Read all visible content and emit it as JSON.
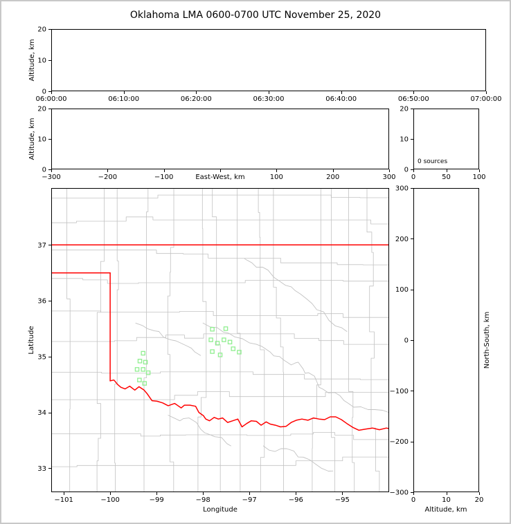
{
  "title": "Oklahoma LMA 0600-0700 UTC November 25, 2020",
  "colors": {
    "axis": "#000000",
    "background": "#ffffff",
    "figure_border": "#c8c8c8",
    "state_boundary": "#ff0000",
    "county_line": "#c2c2c2",
    "station_marker": "#90ee90"
  },
  "chart_data": [
    {
      "id": "time_height",
      "type": "scatter",
      "xlabel": "",
      "ylabel": "Altitude, km",
      "xlim": [
        0,
        60
      ],
      "ylim": [
        0,
        20
      ],
      "xticks": [
        0,
        10,
        20,
        30,
        40,
        50,
        60
      ],
      "xtick_labels": [
        "06:00:00",
        "06:10:00",
        "06:20:00",
        "06:30:00",
        "06:40:00",
        "06:50:00",
        "07:00:00"
      ],
      "yticks": [
        0,
        10,
        20
      ],
      "ytick_labels": [
        "0",
        "10",
        "20"
      ],
      "points": []
    },
    {
      "id": "ew_height",
      "type": "scatter",
      "xlabel": "East-West, km",
      "ylabel": "Altitude, km",
      "xlim": [
        -300,
        300
      ],
      "ylim": [
        0,
        20
      ],
      "xticks": [
        -300,
        -200,
        -100,
        0,
        100,
        200,
        300
      ],
      "xtick_labels": [
        "−300",
        "−200",
        "−100",
        "",
        "100",
        "200",
        "300"
      ],
      "yticks": [
        0,
        10,
        20
      ],
      "ytick_labels": [
        "0",
        "10",
        "20"
      ],
      "points": []
    },
    {
      "id": "source_histogram",
      "type": "bar",
      "xlabel": "",
      "ylabel": "",
      "annotation": "0 sources",
      "xlim": [
        0,
        100
      ],
      "ylim": [
        0,
        20
      ],
      "xticks": [
        0,
        50,
        100
      ],
      "xtick_labels": [
        "0",
        "50",
        "100"
      ],
      "yticks": [
        0,
        10,
        20
      ],
      "ytick_labels": [
        "0",
        "10",
        "20"
      ],
      "values": []
    },
    {
      "id": "plan_view",
      "type": "map-scatter",
      "xlabel": "Longitude",
      "ylabel": "Latitude",
      "xlim": [
        -101.27,
        -93.99
      ],
      "ylim": [
        32.57,
        38.02
      ],
      "xticks": [
        -101,
        -100,
        -99,
        -98,
        -97,
        -96,
        -95
      ],
      "xtick_labels": [
        "−101",
        "−100",
        "−99",
        "−98",
        "−97",
        "−96",
        "−95"
      ],
      "yticks": [
        33,
        34,
        35,
        36,
        37
      ],
      "ytick_labels": [
        "33",
        "34",
        "35",
        "36",
        "37"
      ],
      "points": [],
      "stations": [
        [
          -99.29,
          35.06
        ],
        [
          -99.36,
          34.92
        ],
        [
          -99.24,
          34.9
        ],
        [
          -99.42,
          34.77
        ],
        [
          -99.29,
          34.77
        ],
        [
          -99.18,
          34.71
        ],
        [
          -99.37,
          34.58
        ],
        [
          -99.26,
          34.52
        ],
        [
          -97.8,
          35.49
        ],
        [
          -97.51,
          35.5
        ],
        [
          -97.83,
          35.3
        ],
        [
          -97.69,
          35.24
        ],
        [
          -97.55,
          35.3
        ],
        [
          -97.42,
          35.26
        ],
        [
          -97.8,
          35.09
        ],
        [
          -97.63,
          35.03
        ],
        [
          -97.35,
          35.14
        ],
        [
          -97.22,
          35.08
        ]
      ],
      "state_border": [
        [
          [
            -101.27,
            37.0
          ],
          [
            -93.99,
            37.0
          ]
        ],
        [
          [
            -101.27,
            36.5
          ],
          [
            -100.0,
            36.5
          ]
        ],
        [
          [
            -100.0,
            36.5
          ],
          [
            -100.0,
            34.565
          ]
        ],
        [
          [
            -100.0,
            34.565
          ],
          [
            -99.92,
            34.58
          ],
          [
            -99.84,
            34.5
          ],
          [
            -99.77,
            34.45
          ],
          [
            -99.68,
            34.42
          ],
          [
            -99.58,
            34.47
          ],
          [
            -99.47,
            34.4
          ],
          [
            -99.38,
            34.46
          ],
          [
            -99.27,
            34.4
          ],
          [
            -99.2,
            34.33
          ],
          [
            -99.1,
            34.21
          ],
          [
            -98.99,
            34.2
          ],
          [
            -98.87,
            34.17
          ],
          [
            -98.75,
            34.12
          ],
          [
            -98.61,
            34.16
          ],
          [
            -98.47,
            34.08
          ],
          [
            -98.4,
            34.13
          ],
          [
            -98.28,
            34.13
          ],
          [
            -98.16,
            34.11
          ],
          [
            -98.09,
            34.0
          ],
          [
            -97.99,
            33.94
          ],
          [
            -97.94,
            33.88
          ],
          [
            -97.86,
            33.85
          ],
          [
            -97.76,
            33.91
          ],
          [
            -97.67,
            33.88
          ],
          [
            -97.58,
            33.9
          ],
          [
            -97.47,
            33.82
          ],
          [
            -97.36,
            33.85
          ],
          [
            -97.25,
            33.88
          ],
          [
            -97.16,
            33.74
          ],
          [
            -97.06,
            33.8
          ],
          [
            -96.96,
            33.85
          ],
          [
            -96.85,
            33.84
          ],
          [
            -96.75,
            33.77
          ],
          [
            -96.64,
            33.83
          ],
          [
            -96.55,
            33.79
          ],
          [
            -96.44,
            33.77
          ],
          [
            -96.33,
            33.74
          ],
          [
            -96.21,
            33.75
          ],
          [
            -96.1,
            33.82
          ],
          [
            -95.99,
            33.86
          ],
          [
            -95.87,
            33.88
          ],
          [
            -95.74,
            33.86
          ],
          [
            -95.62,
            33.9
          ],
          [
            -95.5,
            33.88
          ],
          [
            -95.38,
            33.87
          ],
          [
            -95.26,
            33.92
          ],
          [
            -95.14,
            33.92
          ],
          [
            -95.02,
            33.87
          ],
          [
            -94.9,
            33.8
          ],
          [
            -94.77,
            33.73
          ],
          [
            -94.64,
            33.68
          ],
          [
            -94.5,
            33.7
          ],
          [
            -94.35,
            33.72
          ],
          [
            -94.2,
            33.69
          ],
          [
            -94.05,
            33.72
          ],
          [
            -93.99,
            33.71
          ]
        ]
      ],
      "river_lines": [
        [
          [
            -96.35,
            35.0
          ],
          [
            -96.1,
            34.85
          ],
          [
            -95.95,
            34.9
          ],
          [
            -95.8,
            34.7
          ],
          [
            -95.6,
            34.65
          ],
          [
            -95.5,
            34.45
          ],
          [
            -95.3,
            34.35
          ],
          [
            -95.05,
            34.3
          ],
          [
            -94.85,
            34.15
          ],
          [
            -94.6,
            34.1
          ],
          [
            -94.3,
            34.05
          ],
          [
            -94.0,
            34.0
          ]
        ],
        [
          [
            -98.75,
            33.95
          ],
          [
            -98.5,
            33.85
          ],
          [
            -98.3,
            33.9
          ],
          [
            -98.05,
            33.7
          ],
          [
            -97.85,
            33.6
          ],
          [
            -97.6,
            33.55
          ],
          [
            -97.4,
            33.4
          ]
        ],
        [
          [
            -96.7,
            33.4
          ],
          [
            -96.45,
            33.3
          ],
          [
            -96.2,
            33.35
          ],
          [
            -95.95,
            33.2
          ],
          [
            -95.7,
            33.15
          ],
          [
            -95.45,
            33.0
          ],
          [
            -95.2,
            32.95
          ]
        ],
        [
          [
            -99.45,
            35.6
          ],
          [
            -99.2,
            35.5
          ],
          [
            -98.95,
            35.45
          ],
          [
            -98.7,
            35.3
          ],
          [
            -98.5,
            35.25
          ],
          [
            -98.25,
            35.15
          ],
          [
            -98.05,
            35.02
          ]
        ],
        [
          [
            -97.1,
            36.75
          ],
          [
            -96.85,
            36.6
          ],
          [
            -96.6,
            36.55
          ],
          [
            -96.35,
            36.35
          ],
          [
            -96.1,
            36.25
          ],
          [
            -95.9,
            36.12
          ],
          [
            -95.65,
            35.95
          ],
          [
            -95.4,
            35.8
          ],
          [
            -95.15,
            35.55
          ],
          [
            -94.9,
            35.45
          ]
        ],
        [
          [
            -98.0,
            35.6
          ],
          [
            -97.7,
            35.52
          ],
          [
            -97.45,
            35.42
          ],
          [
            -97.15,
            35.32
          ],
          [
            -96.85,
            35.22
          ],
          [
            -96.55,
            35.08
          ],
          [
            -96.35,
            35.0
          ]
        ]
      ],
      "county_grid": {
        "seed": 11,
        "jog_prob": 0.32,
        "jog_deg": 0.22
      }
    },
    {
      "id": "ns_height",
      "type": "scatter",
      "xlabel": "Altitude, km",
      "ylabel": "North-South, km",
      "xlim": [
        0,
        20
      ],
      "ylim": [
        -300,
        300
      ],
      "xticks": [
        0,
        10,
        20
      ],
      "xtick_labels": [
        "0",
        "10",
        "20"
      ],
      "yticks": [
        300,
        200,
        100,
        0,
        -100,
        -200,
        -300
      ],
      "ytick_labels": [
        "300",
        "200",
        "100",
        "0",
        "−100",
        "−200",
        "−300"
      ],
      "points": []
    }
  ]
}
